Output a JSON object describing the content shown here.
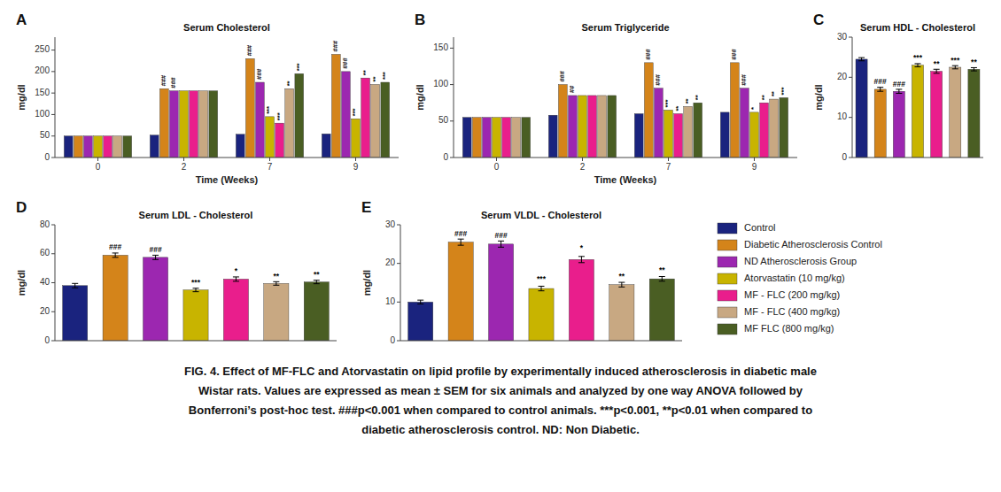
{
  "chart_data": [
    {
      "type": "bar",
      "panel": "A",
      "title": "Serum Cholesterol",
      "x_label": "Time (Weeks)",
      "y_label": "mg/dl",
      "categories": [
        "0",
        "2",
        "7",
        "9"
      ],
      "series": [
        {
          "name": "Control",
          "color": "#1a237e",
          "values": [
            50,
            52,
            54,
            55
          ]
        },
        {
          "name": "Diabetic Atherosclerosis Control",
          "color": "#d4841a",
          "values": [
            50,
            160,
            230,
            240
          ]
        },
        {
          "name": "ND Atherosclerosis Group",
          "color": "#9c27b0",
          "values": [
            50,
            155,
            175,
            200
          ]
        },
        {
          "name": "Atorvastatin (10 mg/kg)",
          "color": "#c8b400",
          "values": [
            50,
            155,
            95,
            90
          ]
        },
        {
          "name": "MF - FLC (200 mg/kg)",
          "color": "#e91e8c",
          "values": [
            50,
            155,
            80,
            185
          ]
        },
        {
          "name": "MF - FLC (400 mg/kg)",
          "color": "#c8a882",
          "values": [
            50,
            155,
            160,
            170
          ]
        },
        {
          "name": "MF FLC (800 mg/kg)",
          "color": "#4a5e23",
          "values": [
            50,
            155,
            195,
            175
          ]
        }
      ],
      "ylim": [
        0,
        280
      ],
      "yticks": [
        0,
        50,
        100,
        150,
        200,
        250
      ],
      "grid": false,
      "legend": "upper left",
      "annotations": [
        {
          "series": 1,
          "category": 1,
          "text": "###"
        },
        {
          "series": 2,
          "category": 1,
          "text": "###"
        },
        {
          "series": 1,
          "category": 2,
          "text": "###"
        },
        {
          "series": 2,
          "category": 2,
          "text": "###"
        },
        {
          "series": 1,
          "category": 3,
          "text": "###"
        },
        {
          "series": 2,
          "category": 3,
          "text": "###"
        },
        {
          "series": 3,
          "category": 2,
          "text": "***"
        },
        {
          "series": 4,
          "category": 2,
          "text": "***"
        },
        {
          "series": 5,
          "category": 2,
          "text": "**"
        },
        {
          "series": 6,
          "category": 2,
          "text": "***"
        },
        {
          "series": 3,
          "category": 3,
          "text": "***"
        },
        {
          "series": 4,
          "category": 3,
          "text": "**"
        },
        {
          "series": 5,
          "category": 3,
          "text": "**"
        },
        {
          "series": 6,
          "category": 3,
          "text": "***"
        }
      ]
    },
    {
      "type": "bar",
      "panel": "B",
      "title": "Serum Triglyceride",
      "x_label": "Time (Weeks)",
      "y_label": "mg/dl",
      "categories": [
        "0",
        "2",
        "7",
        "9"
      ],
      "series": [
        {
          "color": "#1a237e",
          "values": [
            55,
            58,
            60,
            62
          ]
        },
        {
          "color": "#d4841a",
          "values": [
            55,
            100,
            130,
            130
          ]
        },
        {
          "color": "#9c27b0",
          "values": [
            55,
            85,
            95,
            95
          ]
        },
        {
          "color": "#c8b400",
          "values": [
            55,
            85,
            65,
            62
          ]
        },
        {
          "color": "#e91e8c",
          "values": [
            55,
            85,
            60,
            75
          ]
        },
        {
          "color": "#c8a882",
          "values": [
            55,
            85,
            70,
            80
          ]
        },
        {
          "color": "#4a5e23",
          "values": [
            55,
            85,
            75,
            82
          ]
        }
      ],
      "ylim": [
        0,
        165
      ],
      "yticks": [
        0,
        50,
        100,
        150
      ],
      "grid": false,
      "annotations": [
        {
          "series": 1,
          "category": 1,
          "text": "###"
        },
        {
          "series": 2,
          "category": 1,
          "text": "##"
        },
        {
          "series": 1,
          "category": 2,
          "text": "###"
        },
        {
          "series": 2,
          "category": 2,
          "text": "###"
        },
        {
          "series": 1,
          "category": 3,
          "text": "###"
        },
        {
          "series": 2,
          "category": 3,
          "text": "###"
        },
        {
          "series": 3,
          "category": 2,
          "text": "***"
        },
        {
          "series": 4,
          "category": 2,
          "text": "**"
        },
        {
          "series": 5,
          "category": 2,
          "text": "**"
        },
        {
          "series": 6,
          "category": 2,
          "text": "**"
        },
        {
          "series": 3,
          "category": 3,
          "text": "*"
        },
        {
          "series": 4,
          "category": 3,
          "text": "**"
        },
        {
          "series": 5,
          "category": 3,
          "text": "**"
        },
        {
          "series": 6,
          "category": 3,
          "text": "***"
        }
      ]
    },
    {
      "type": "bar",
      "panel": "C",
      "title": "Serum HDL - Cholesterol",
      "y_label": "mg/dl",
      "categories": [
        null,
        null,
        null,
        null,
        null,
        null,
        null
      ],
      "values": [
        24.5,
        17.0,
        16.5,
        23.0,
        21.5,
        22.5,
        22.0
      ],
      "errors": [
        0.4,
        0.5,
        0.5,
        0.4,
        0.5,
        0.4,
        0.4
      ],
      "colors": [
        "#1a237e",
        "#d4841a",
        "#9c27b0",
        "#c8b400",
        "#e91e8c",
        "#c8a882",
        "#4a5e23"
      ],
      "ylim": [
        0,
        30
      ],
      "yticks": [
        0,
        10,
        20,
        30
      ],
      "grid": false,
      "tick_labels": "y",
      "annotations": [
        {
          "index": 1,
          "text": "###",
          "y": 17.8
        },
        {
          "index": 2,
          "text": "###",
          "y": 17.2
        },
        {
          "index": 3,
          "text": "***",
          "y": 23.8
        },
        {
          "index": 4,
          "text": "**",
          "y": 22.3
        },
        {
          "index": 5,
          "text": "***",
          "y": 23.2
        },
        {
          "index": 6,
          "text": "**",
          "y": 22.7
        }
      ]
    },
    {
      "type": "bar",
      "panel": "D",
      "title": "Serum LDL - Cholesterol",
      "y_label": "mg/dl",
      "categories": [
        null,
        null,
        null,
        null,
        null,
        null,
        null
      ],
      "values": [
        38.0,
        59.0,
        57.5,
        35.0,
        42.5,
        39.5,
        40.5
      ],
      "errors": [
        1.5,
        1.5,
        1.5,
        1.2,
        1.5,
        1.2,
        1.2
      ],
      "colors": [
        "#1a237e",
        "#d4841a",
        "#9c27b0",
        "#c8b400",
        "#e91e8c",
        "#c8a882",
        "#4a5e23"
      ],
      "ylim": [
        0,
        80
      ],
      "yticks": [
        0,
        20,
        40,
        60,
        80
      ],
      "grid": false,
      "tick_labels": "y",
      "annotations": [
        {
          "index": 1,
          "text": "###",
          "y": 61.5
        },
        {
          "index": 2,
          "text": "###",
          "y": 60.0
        },
        {
          "index": 3,
          "text": "***",
          "y": 37.2
        },
        {
          "index": 4,
          "text": "*",
          "y": 45.0
        },
        {
          "index": 5,
          "text": "**",
          "y": 41.8
        },
        {
          "index": 6,
          "text": "**",
          "y": 42.8
        }
      ]
    },
    {
      "type": "bar",
      "panel": "E",
      "title": "Serum VLDL - Cholesterol",
      "y_label": "mg/dl",
      "categories": [
        null,
        null,
        null,
        null,
        null,
        null,
        null
      ],
      "values": [
        10.0,
        25.5,
        25.0,
        13.5,
        21.0,
        14.5,
        16.0
      ],
      "errors": [
        0.5,
        0.8,
        0.8,
        0.6,
        0.8,
        0.6,
        0.6
      ],
      "colors": [
        "#1a237e",
        "#d4841a",
        "#9c27b0",
        "#c8b400",
        "#e91e8c",
        "#c8a882",
        "#4a5e23"
      ],
      "ylim": [
        0,
        30
      ],
      "yticks": [
        0,
        10,
        20,
        30
      ],
      "grid": false,
      "tick_labels": "y",
      "annotations": [
        {
          "index": 1,
          "text": "###",
          "y": 26.5
        },
        {
          "index": 2,
          "text": "###",
          "y": 26.0
        },
        {
          "index": 3,
          "text": "***",
          "y": 14.8
        },
        {
          "index": 4,
          "text": "*",
          "y": 22.8
        },
        {
          "index": 5,
          "text": "**",
          "y": 15.5
        },
        {
          "index": 6,
          "text": "**",
          "y": 17.2
        }
      ]
    }
  ],
  "caption": [
    "FIG. 4. Effect of MF-FLC and Atorvastatin on lipid profile by experimentally induced atherosclerosis in diabetic male",
    "Wistar rats. Values are expressed as mean ± SEM for six animals and analyzed by one way ANOVA followed by",
    "Bonferroni’s post-hoc test. ###p<0.001 when compared to control animals. ***p<0.001, **p<0.01 when compared to",
    "diabetic atherosclerosis control. ND: Non Diabetic."
  ]
}
